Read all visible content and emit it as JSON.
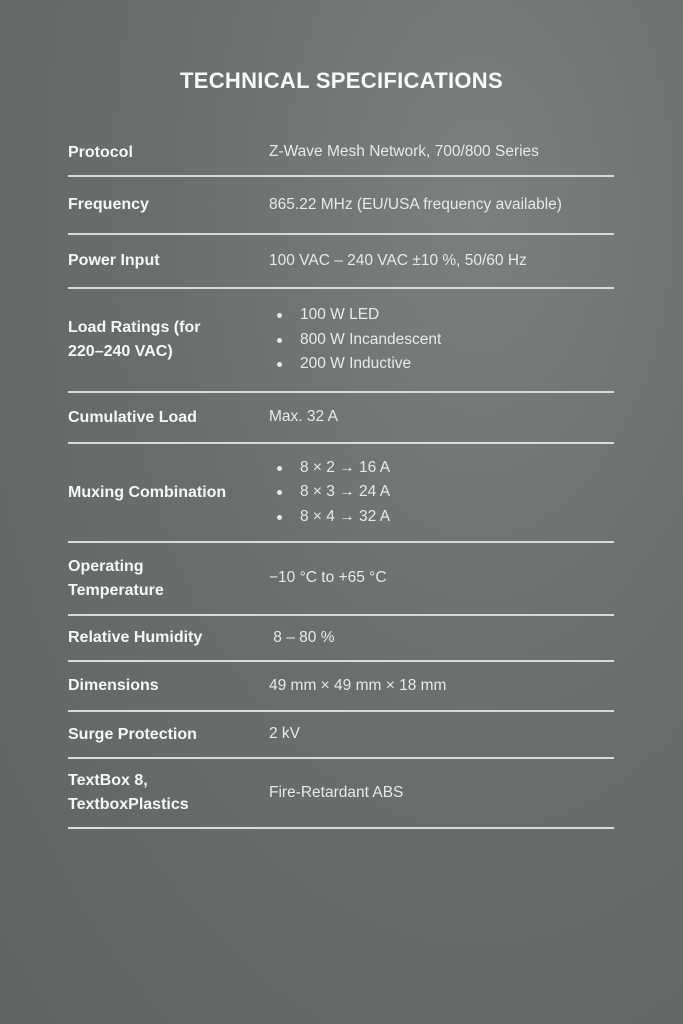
{
  "title": "TECHNICAL SPECIFICATIONS",
  "specs": [
    {
      "label": "Protocol",
      "value": "Z-Wave Mesh Network, 700/800 Series"
    },
    {
      "label": "Frequency",
      "value": "865.22 MHz (EU/USA frequency available)"
    },
    {
      "label": "Power Input",
      "value": "100 VAC – 240 VAC ±10 %, 50/60 Hz"
    },
    {
      "label": "Load Ratings (for 220–240 VAC)",
      "items": [
        "100 W LED",
        "800 W Incandescent",
        "200 W Inductive"
      ]
    },
    {
      "label": "Cumulative Load",
      "value": "Max. 32 A"
    },
    {
      "label": "Muxing Combination",
      "items": [
        "8 × 2 → 16 A",
        "8 × 3 → 24 A",
        "8 × 4 → 32 A"
      ]
    },
    {
      "label": "Operating Temperature",
      "value": "−10 °C to +65 °C"
    },
    {
      "label": "Relative Humidity",
      "value": " 8 – 80 %"
    },
    {
      "label": "Dimensions",
      "value": "49 mm × 49 mm × 18 mm"
    },
    {
      "label": "Surge Protection",
      "value": "2 kV"
    },
    {
      "label": "TextBox 8, TextboxPlastics",
      "value": "Fire-Retardant ABS"
    }
  ]
}
